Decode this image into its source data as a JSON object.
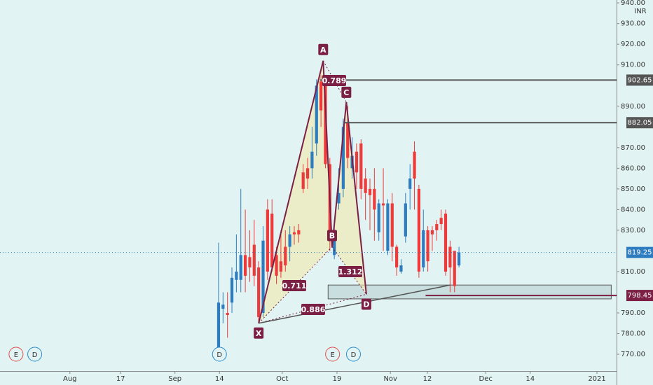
{
  "chart_data": {
    "type": "candlestick",
    "currency": "INR",
    "xlim": [
      -49.1,
      89.4
    ],
    "ylim": [
      761.9,
      941.4
    ],
    "xticks": [
      {
        "value": -33.4,
        "label": "Aug"
      },
      {
        "value": -22,
        "label": "17"
      },
      {
        "value": -9.8,
        "label": "Sep"
      },
      {
        "value": 0.2,
        "label": "14"
      },
      {
        "value": 14.3,
        "label": "Oct"
      },
      {
        "value": 26.6,
        "label": "19"
      },
      {
        "value": 38.6,
        "label": "Nov"
      },
      {
        "value": 46.9,
        "label": "12"
      },
      {
        "value": 60,
        "label": "Dec"
      },
      {
        "value": 70,
        "label": "14"
      },
      {
        "value": 85,
        "label": "2021"
      }
    ],
    "yticks": [
      {
        "value": 940,
        "label": "940.00"
      },
      {
        "value": 930,
        "label": "930.00"
      },
      {
        "value": 920,
        "label": "920.00"
      },
      {
        "value": 910,
        "label": "910.00"
      },
      {
        "value": 890,
        "label": "890.00"
      },
      {
        "value": 870,
        "label": "870.00"
      },
      {
        "value": 860,
        "label": "860.00"
      },
      {
        "value": 850,
        "label": "850.00"
      },
      {
        "value": 840,
        "label": "840.00"
      },
      {
        "value": 830,
        "label": "830.00"
      },
      {
        "value": 810,
        "label": "810.00"
      },
      {
        "value": 790,
        "label": "790.00"
      },
      {
        "value": 780,
        "label": "780.00"
      },
      {
        "value": 770,
        "label": "770.00"
      }
    ],
    "up_color": "#2e7cc0",
    "down_color": "#ee3a3a",
    "x": [
      0,
      1,
      2,
      3,
      4,
      5,
      6,
      7,
      8,
      9,
      10,
      11,
      12,
      13,
      14,
      15,
      16,
      17,
      18,
      19,
      20,
      21,
      22,
      23,
      24,
      25,
      26,
      27,
      28,
      29,
      30,
      31,
      32,
      33,
      34,
      35,
      36,
      37,
      38,
      39,
      40,
      41,
      42,
      43,
      44,
      45,
      46,
      47,
      48,
      49,
      50,
      51,
      52,
      53,
      54
    ],
    "open": [
      772,
      792,
      790,
      795,
      806,
      806,
      818,
      817,
      823,
      812,
      790,
      840,
      838,
      818,
      815,
      822,
      822,
      829,
      830,
      858,
      860,
      860,
      872,
      902,
      900,
      862,
      818,
      843,
      850,
      882,
      860,
      868,
      872,
      855,
      850,
      850,
      829,
      843,
      820,
      843,
      822,
      810,
      827,
      850,
      868,
      850,
      812,
      830,
      830,
      833,
      836,
      838,
      822,
      820,
      813
    ],
    "high": [
      824,
      800,
      800,
      812,
      828,
      850,
      840,
      830,
      835,
      815,
      832,
      845,
      845,
      822,
      830,
      830,
      832,
      832,
      833,
      862,
      865,
      880,
      903,
      905,
      905,
      865,
      835,
      860,
      884,
      890,
      875,
      872,
      874,
      860,
      855,
      860,
      845,
      860,
      845,
      848,
      823,
      816,
      848,
      862,
      873,
      852,
      840,
      832,
      832,
      835,
      840,
      840,
      825,
      820,
      822
    ],
    "low": [
      770,
      785,
      778,
      790,
      800,
      800,
      800,
      805,
      803,
      785,
      788,
      806,
      810,
      804,
      807,
      810,
      815,
      823,
      824,
      848,
      850,
      855,
      866,
      880,
      860,
      820,
      816,
      840,
      846,
      860,
      855,
      850,
      845,
      835,
      830,
      825,
      825,
      820,
      818,
      815,
      808,
      809,
      824,
      840,
      840,
      807,
      810,
      810,
      820,
      825,
      830,
      808,
      800,
      800,
      812
    ],
    "close": [
      795,
      794,
      789,
      807,
      810,
      818,
      808,
      812,
      808,
      788,
      825,
      810,
      812,
      808,
      810,
      813,
      828,
      828,
      828,
      850,
      855,
      868,
      900,
      888,
      862,
      826,
      830,
      848,
      880,
      865,
      866,
      858,
      850,
      848,
      847,
      840,
      843,
      842,
      843,
      822,
      812,
      813,
      843,
      855,
      855,
      810,
      830,
      815,
      828,
      830,
      833,
      810,
      812,
      803,
      819.25
    ],
    "pattern": {
      "color": "#7b1f45",
      "points": [
        {
          "label": "X",
          "x": 9,
          "y": 785
        },
        {
          "label": "A",
          "x": 23.5,
          "y": 912
        },
        {
          "label": "B",
          "x": 25.5,
          "y": 822
        },
        {
          "label": "C",
          "x": 28.7,
          "y": 892
        },
        {
          "label": "D",
          "x": 33.2,
          "y": 799
        }
      ],
      "ratios": [
        0.789,
        1.312,
        0.711,
        0.886
      ]
    },
    "trendline": {
      "x": [
        9,
        52.1
      ],
      "y": [
        785,
        803.5
      ]
    },
    "zone": {
      "x": [
        24.6,
        88.2
      ],
      "y": [
        796.8,
        803.5
      ]
    },
    "levels": [
      {
        "value": 902.65,
        "color": "#555555",
        "from": 22.8
      },
      {
        "value": 882.05,
        "color": "#555555",
        "from": 28.2
      },
      {
        "value": 819.25,
        "color": "#2e7cc0",
        "from": -49.1
      },
      {
        "value": 798.45,
        "color": "#7b1f45",
        "from": 46.5
      }
    ],
    "events": [
      {
        "label": "E",
        "x": -45.5
      },
      {
        "label": "D",
        "x": -41.3
      },
      {
        "label": "D",
        "x": 0.2
      },
      {
        "label": "E",
        "x": 25.6
      },
      {
        "label": "D",
        "x": 30.3
      }
    ]
  }
}
